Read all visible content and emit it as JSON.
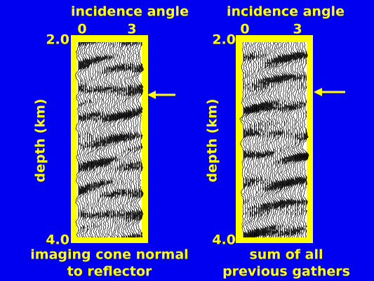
{
  "panels": [
    {
      "title": "incidence angle",
      "angle_ticks": [
        "0",
        "3"
      ],
      "depth_ticks": [
        "2.0",
        "4.0"
      ],
      "ylabel": "depth (km)",
      "caption": [
        "imaging cone normal",
        "to reflector"
      ]
    },
    {
      "title": "incidence angle",
      "angle_ticks": [
        "0",
        "3"
      ],
      "depth_ticks": [
        "2.0",
        "4.0"
      ],
      "ylabel": "depth (km)",
      "caption": [
        "sum of all",
        "previous gathers"
      ]
    }
  ]
}
